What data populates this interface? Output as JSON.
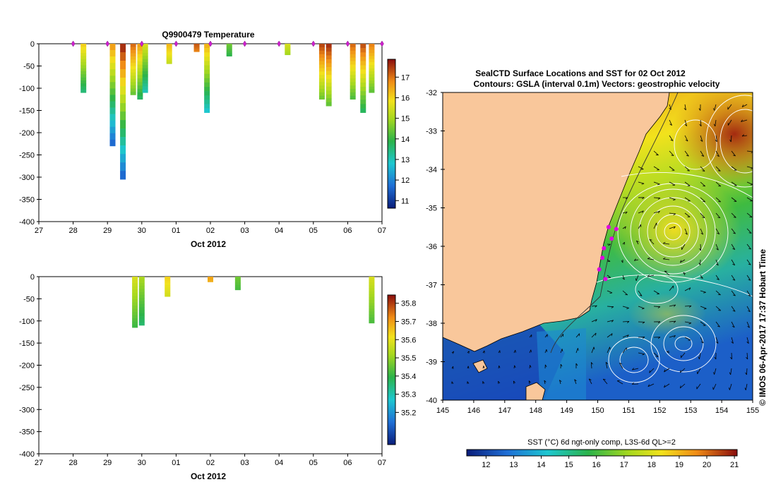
{
  "chart_data": [
    {
      "type": "heatmap",
      "title": "Q9900479  Temperature",
      "xlabel": "Oct 2012",
      "ylabel": "",
      "x_ticks": [
        "27",
        "28",
        "29",
        "30",
        "01",
        "02",
        "03",
        "04",
        "05",
        "06",
        "07"
      ],
      "y_ticks": [
        "0",
        "-50",
        "-100",
        "-150",
        "-200",
        "-250",
        "-300",
        "-350",
        "-400"
      ],
      "ylim": [
        -400,
        0
      ],
      "xlim": [
        27,
        37
      ],
      "colorbar_ticks": [
        "11",
        "12",
        "13",
        "14",
        "15",
        "16",
        "17"
      ],
      "colorbar_range": [
        10.7,
        17.8
      ],
      "surface_markers": [
        28.0,
        29.0,
        30.0,
        31.0,
        32.0,
        33.0,
        34.0,
        35.0,
        36.0,
        37.0
      ],
      "profiles": [
        {
          "t": 28.3,
          "depth": 110,
          "surface": 16.0
        },
        {
          "t": 29.15,
          "depth": 230,
          "surface": 16.5
        },
        {
          "t": 29.45,
          "depth": 305,
          "surface": 17.5
        },
        {
          "t": 29.75,
          "depth": 115,
          "surface": 17.0
        },
        {
          "t": 29.95,
          "depth": 125,
          "surface": 16.5
        },
        {
          "t": 30.1,
          "depth": 110,
          "surface": 15.5
        },
        {
          "t": 30.8,
          "depth": 45,
          "surface": 16.3
        },
        {
          "t": 31.6,
          "depth": 18,
          "surface": 17.2
        },
        {
          "t": 31.9,
          "depth": 155,
          "surface": 16.3
        },
        {
          "t": 32.55,
          "depth": 28,
          "surface": 14.5
        },
        {
          "t": 34.25,
          "depth": 25,
          "surface": 15.5
        },
        {
          "t": 35.25,
          "depth": 125,
          "surface": 17.3
        },
        {
          "t": 35.45,
          "depth": 140,
          "surface": 17.5
        },
        {
          "t": 36.15,
          "depth": 125,
          "surface": 17.0
        },
        {
          "t": 36.45,
          "depth": 155,
          "surface": 17.2
        },
        {
          "t": 36.7,
          "depth": 110,
          "surface": 16.8
        }
      ]
    },
    {
      "type": "heatmap",
      "title": "",
      "xlabel": "Oct 2012",
      "ylabel": "",
      "x_ticks": [
        "27",
        "28",
        "29",
        "30",
        "01",
        "02",
        "03",
        "04",
        "05",
        "06",
        "07"
      ],
      "y_ticks": [
        "0",
        "-50",
        "-100",
        "-150",
        "-200",
        "-250",
        "-300",
        "-350",
        "-400"
      ],
      "ylim": [
        -400,
        0
      ],
      "xlim": [
        27,
        37
      ],
      "colorbar_ticks": [
        "35.2",
        "35.3",
        "35.4",
        "35.5",
        "35.6",
        "35.7",
        "35.8"
      ],
      "colorbar_range": [
        35.12,
        35.83
      ],
      "profiles": [
        {
          "t": 29.8,
          "depth": 115,
          "surface": 35.6
        },
        {
          "t": 30.0,
          "depth": 110,
          "surface": 35.55
        },
        {
          "t": 30.75,
          "depth": 45,
          "surface": 35.65
        },
        {
          "t": 32.0,
          "depth": 12,
          "surface": 35.7
        },
        {
          "t": 32.8,
          "depth": 30,
          "surface": 35.5
        },
        {
          "t": 36.7,
          "depth": 105,
          "surface": 35.6
        }
      ]
    },
    {
      "type": "map",
      "title": "SealCTD Surface Locations and SST for 02 Oct 2012",
      "subtitle": "Contours: GSLA (interval 0.1m) Vectors: geostrophic velocity",
      "x_ticks": [
        "145",
        "146",
        "147",
        "148",
        "149",
        "150",
        "151",
        "152",
        "153",
        "154",
        "155"
      ],
      "y_ticks": [
        "-32",
        "-33",
        "-34",
        "-35",
        "-36",
        "-37",
        "-38",
        "-39",
        "-40"
      ],
      "xlim": [
        145,
        155
      ],
      "ylim": [
        -40,
        -32
      ],
      "colorbar_label": "SST (°C) 6d ngt-only comp, L3S-6d QL>=2",
      "colorbar_ticks": [
        "12",
        "13",
        "14",
        "15",
        "16",
        "17",
        "18",
        "19",
        "20",
        "21"
      ],
      "colorbar_range": [
        11.3,
        21.1
      ],
      "credit": "© IMOS 06-Apr-2017 17:37 Hobart Time",
      "seal_locations": [
        {
          "lon": 150.35,
          "lat": -35.5
        },
        {
          "lon": 150.6,
          "lat": -35.55
        },
        {
          "lon": 150.45,
          "lat": -35.8
        },
        {
          "lon": 150.2,
          "lat": -36.05
        },
        {
          "lon": 150.15,
          "lat": -36.3
        },
        {
          "lon": 150.05,
          "lat": -36.6
        },
        {
          "lon": 150.25,
          "lat": -36.85
        }
      ]
    }
  ]
}
